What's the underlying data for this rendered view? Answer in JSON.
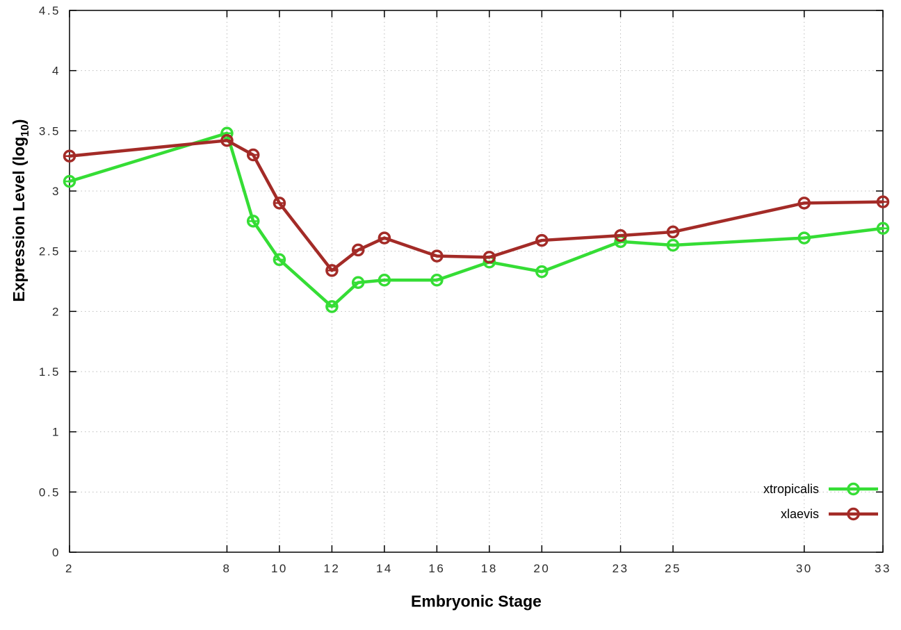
{
  "chart_data": {
    "type": "line",
    "title": "",
    "xlabel": "Embryonic Stage",
    "ylabel": "Expression Level (log10)",
    "ylabel_parts": {
      "main": "Expression Level (log",
      "sub": "10",
      "end": ")"
    },
    "xlim": [
      2,
      33
    ],
    "ylim": [
      0,
      4.5
    ],
    "x_ticks": [
      2,
      8,
      10,
      12,
      14,
      16,
      18,
      20,
      23,
      25,
      30,
      33
    ],
    "y_ticks": [
      0,
      0.5,
      1,
      1.5,
      2,
      2.5,
      3,
      3.5,
      4,
      4.5
    ],
    "y_tick_labels": [
      "0",
      "0.5",
      "1",
      "1.5",
      "2",
      "2.5",
      "3",
      "3.5",
      "4",
      "4.5"
    ],
    "grid": true,
    "legend_position": "bottom-right",
    "x": [
      2,
      8,
      9,
      10,
      12,
      13,
      14,
      16,
      18,
      20,
      23,
      25,
      30,
      33
    ],
    "series": [
      {
        "name": "xtropicalis",
        "color": "#35dd35",
        "values": [
          3.08,
          3.48,
          2.75,
          2.43,
          2.04,
          2.24,
          2.26,
          2.26,
          2.41,
          2.33,
          2.58,
          2.55,
          2.61,
          2.69
        ]
      },
      {
        "name": "xlaevis",
        "color": "#a32b27",
        "values": [
          3.29,
          3.42,
          3.3,
          2.9,
          2.34,
          2.51,
          2.61,
          2.46,
          2.45,
          2.59,
          2.63,
          2.66,
          2.9,
          2.91
        ]
      }
    ],
    "style": {
      "grid_color": "#bdbdbd",
      "border_color": "#000000",
      "tick_label_color": "#2a2a2a"
    }
  }
}
